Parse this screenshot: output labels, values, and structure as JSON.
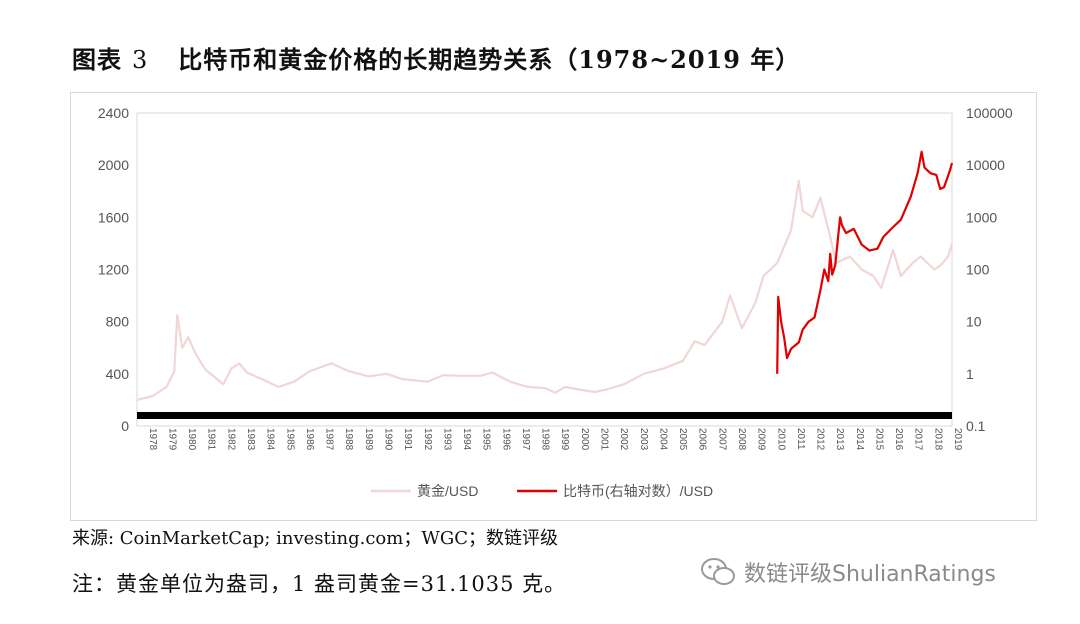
{
  "title": {
    "label": "图表",
    "number": "3",
    "text": "比特币和黄金价格的长期趋势关系（1978~2019 年）"
  },
  "source": "来源: CoinMarketCap; investing.com；WGC；数链评级",
  "note": "注：黄金单位为盎司，1 盎司黄金=31.1035 克。",
  "watermark": {
    "text": "数链评级ShulianRatings",
    "icon": "wechat-icon"
  },
  "colors": {
    "gold": "#f1d6d6",
    "bitcoin": "#e00000",
    "axis_bar": "#000000",
    "grid": "#d9d9d9"
  },
  "chart_data": {
    "type": "line",
    "title": "",
    "left_axis": {
      "range": [
        0,
        2400
      ],
      "ticks": [
        "0",
        "400",
        "800",
        "1200",
        "1600",
        "2000",
        "2400"
      ]
    },
    "right_axis": {
      "scale": "log",
      "range": [
        0.1,
        100000
      ],
      "ticks": [
        "0.1",
        "1",
        "10",
        "100",
        "1000",
        "10000",
        "100000"
      ]
    },
    "x_range": [
      1978,
      2019.5
    ],
    "x_ticks": [
      "1978",
      "1979",
      "1980",
      "1981",
      "1982",
      "1983",
      "1984",
      "1985",
      "1986",
      "1987",
      "1988",
      "1989",
      "1990",
      "1991",
      "1992",
      "1993",
      "1994",
      "1995",
      "1996",
      "1997",
      "1998",
      "1999",
      "2000",
      "2001",
      "2002",
      "2003",
      "2004",
      "2005",
      "2006",
      "2007",
      "2008",
      "2009",
      "2010",
      "2011",
      "2012",
      "2013",
      "2014",
      "2015",
      "2016",
      "2017",
      "2018",
      "2019"
    ],
    "legend_position": "bottom",
    "series": [
      {
        "name": "黄金/USD",
        "axis": "left",
        "points": [
          [
            1978.0,
            200
          ],
          [
            1978.8,
            230
          ],
          [
            1979.5,
            300
          ],
          [
            1979.9,
            420
          ],
          [
            1980.05,
            850
          ],
          [
            1980.3,
            600
          ],
          [
            1980.6,
            680
          ],
          [
            1981.0,
            550
          ],
          [
            1981.5,
            430
          ],
          [
            1982.4,
            320
          ],
          [
            1982.8,
            440
          ],
          [
            1983.2,
            480
          ],
          [
            1983.6,
            410
          ],
          [
            1984.5,
            350
          ],
          [
            1985.2,
            300
          ],
          [
            1986.0,
            340
          ],
          [
            1986.8,
            420
          ],
          [
            1987.9,
            480
          ],
          [
            1988.8,
            420
          ],
          [
            1989.8,
            380
          ],
          [
            1990.7,
            400
          ],
          [
            1991.5,
            360
          ],
          [
            1992.8,
            340
          ],
          [
            1993.6,
            390
          ],
          [
            1994.5,
            385
          ],
          [
            1995.5,
            385
          ],
          [
            1996.1,
            410
          ],
          [
            1997.0,
            340
          ],
          [
            1997.9,
            300
          ],
          [
            1998.8,
            290
          ],
          [
            1999.3,
            255
          ],
          [
            1999.8,
            300
          ],
          [
            2000.5,
            280
          ],
          [
            2001.3,
            260
          ],
          [
            2001.9,
            280
          ],
          [
            2002.8,
            320
          ],
          [
            2003.8,
            400
          ],
          [
            2004.8,
            440
          ],
          [
            2005.8,
            500
          ],
          [
            2006.4,
            650
          ],
          [
            2006.9,
            620
          ],
          [
            2007.8,
            800
          ],
          [
            2008.2,
            1000
          ],
          [
            2008.8,
            750
          ],
          [
            2009.5,
            950
          ],
          [
            2009.9,
            1150
          ],
          [
            2010.6,
            1250
          ],
          [
            2011.3,
            1500
          ],
          [
            2011.7,
            1880
          ],
          [
            2011.9,
            1650
          ],
          [
            2012.4,
            1600
          ],
          [
            2012.8,
            1750
          ],
          [
            2013.3,
            1450
          ],
          [
            2013.6,
            1250
          ],
          [
            2014.3,
            1300
          ],
          [
            2014.9,
            1200
          ],
          [
            2015.5,
            1150
          ],
          [
            2015.9,
            1060
          ],
          [
            2016.5,
            1350
          ],
          [
            2016.9,
            1150
          ],
          [
            2017.5,
            1250
          ],
          [
            2017.9,
            1300
          ],
          [
            2018.6,
            1200
          ],
          [
            2018.9,
            1230
          ],
          [
            2019.3,
            1300
          ],
          [
            2019.5,
            1400
          ]
        ]
      },
      {
        "name": "比特币(右轴对数）/USD",
        "axis": "right",
        "points": [
          [
            2010.6,
            1
          ],
          [
            2010.65,
            30
          ],
          [
            2010.8,
            10
          ],
          [
            2010.95,
            5
          ],
          [
            2011.1,
            2
          ],
          [
            2011.3,
            3
          ],
          [
            2011.7,
            4
          ],
          [
            2011.9,
            7
          ],
          [
            2012.2,
            10
          ],
          [
            2012.5,
            12
          ],
          [
            2012.8,
            40
          ],
          [
            2013.0,
            100
          ],
          [
            2013.2,
            60
          ],
          [
            2013.3,
            200
          ],
          [
            2013.4,
            80
          ],
          [
            2013.55,
            120
          ],
          [
            2013.8,
            1000
          ],
          [
            2013.9,
            700
          ],
          [
            2014.1,
            500
          ],
          [
            2014.5,
            600
          ],
          [
            2014.9,
            300
          ],
          [
            2015.3,
            230
          ],
          [
            2015.7,
            250
          ],
          [
            2016.0,
            420
          ],
          [
            2016.5,
            650
          ],
          [
            2016.9,
            900
          ],
          [
            2017.4,
            2500
          ],
          [
            2017.75,
            7000
          ],
          [
            2017.95,
            18000
          ],
          [
            2018.1,
            9000
          ],
          [
            2018.4,
            7000
          ],
          [
            2018.7,
            6500
          ],
          [
            2018.9,
            3500
          ],
          [
            2019.1,
            3800
          ],
          [
            2019.4,
            8000
          ],
          [
            2019.5,
            11000
          ]
        ]
      }
    ]
  }
}
